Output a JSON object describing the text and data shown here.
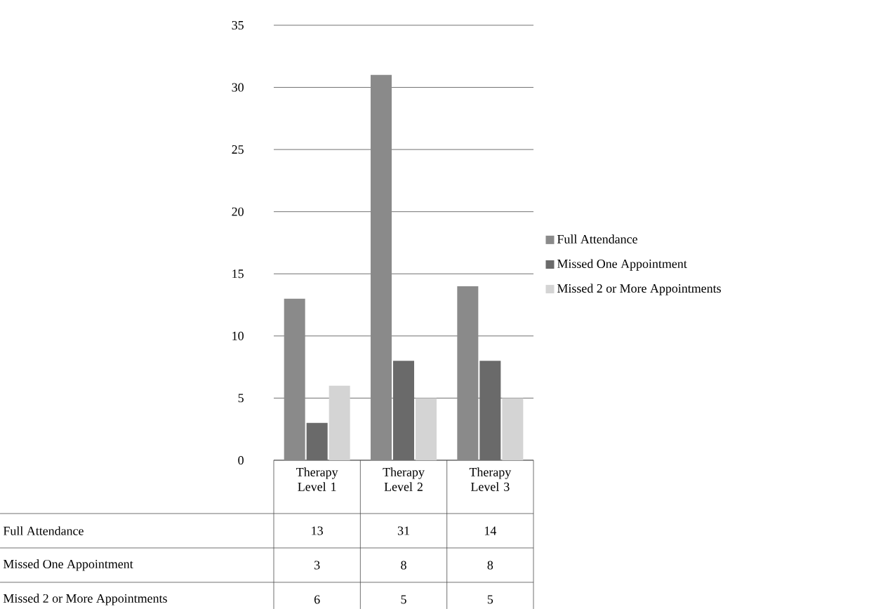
{
  "chart_data": {
    "type": "bar",
    "categories": [
      "Therapy Level 1",
      "Therapy Level 2",
      "Therapy Level 3"
    ],
    "series": [
      {
        "name": "Full Attendance",
        "color": "#8a8a8a",
        "values": [
          13,
          31,
          14
        ]
      },
      {
        "name": "Missed One Appointment",
        "color": "#6a6a6a",
        "values": [
          3,
          8,
          8
        ]
      },
      {
        "name": "Missed 2 or More Appointments",
        "color": "#d4d4d4",
        "values": [
          6,
          5,
          5
        ]
      }
    ],
    "ylim": [
      0,
      35
    ],
    "yticks": [
      0,
      5,
      10,
      15,
      20,
      25,
      30,
      35
    ],
    "grid": "y",
    "legend": "right",
    "data_labels": true
  }
}
